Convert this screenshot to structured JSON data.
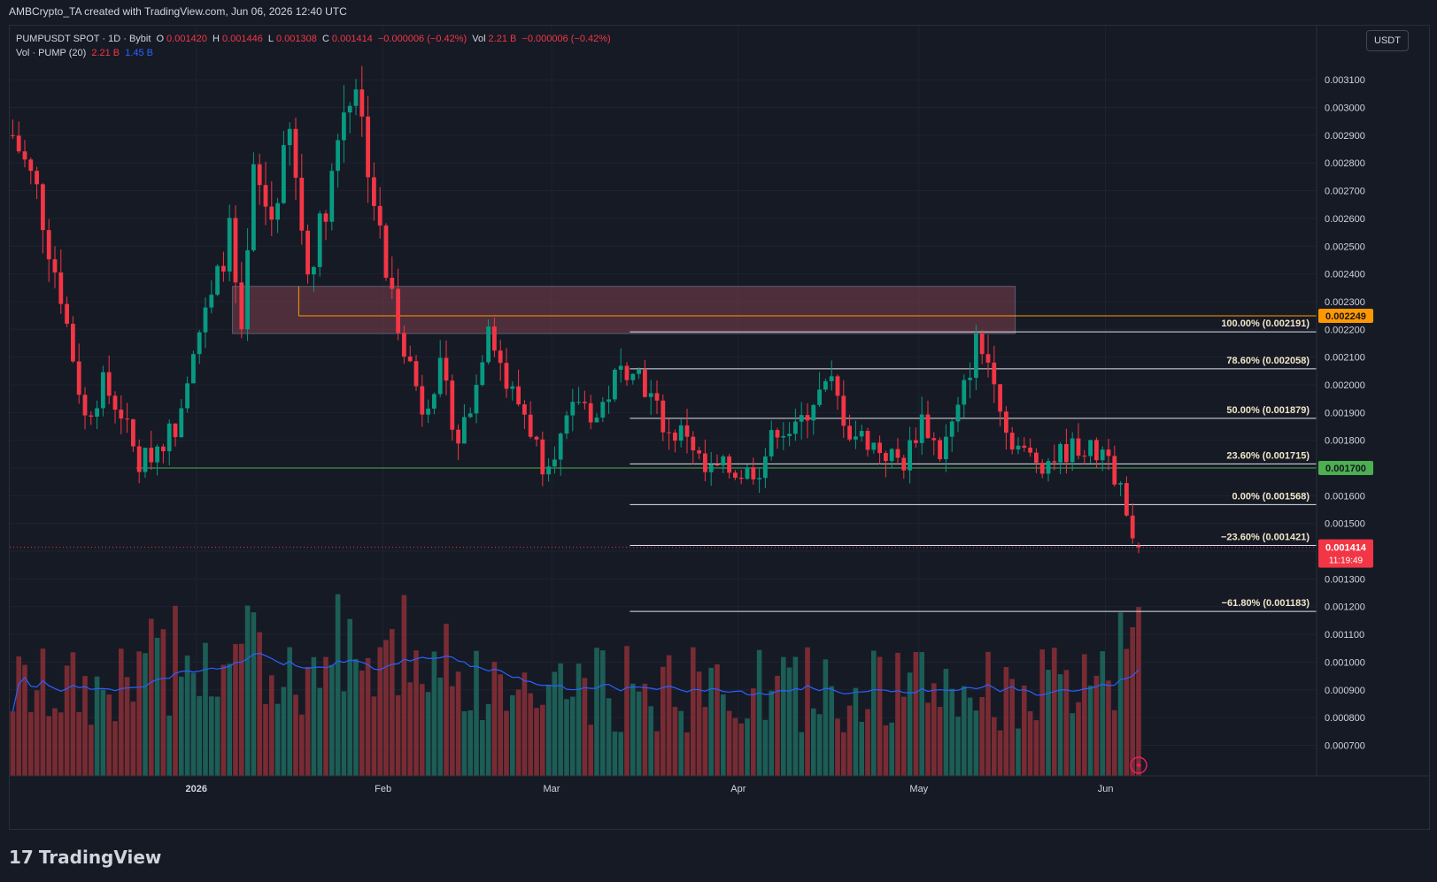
{
  "header": {
    "text": "AMBCrypto_TA created with TradingView.com, Jun 06, 2026 12:40 UTC"
  },
  "legend": {
    "symbol": "PUMPUSDT SPOT · 1D · Bybit",
    "o_label": "O",
    "o": "0.001420",
    "h_label": "H",
    "h": "0.001446",
    "l_label": "L",
    "l": "0.001308",
    "c_label": "C",
    "c": "0.001414",
    "change": "−0.000006 (−0.42%)",
    "vol_label": "Vol",
    "vol": "2.21 B",
    "vol_change": "−0.000006 (−0.42%)",
    "vol_ind": "Vol · PUMP (20)",
    "vol_val1": "2.21 B",
    "vol_val2": "1.45 B"
  },
  "unit_button": "USDT",
  "footer": {
    "logo_mark": "17",
    "logo_text": "TradingView"
  },
  "colors": {
    "up": "#089981",
    "down": "#f23645",
    "fib": "#e0e3eb",
    "support": "#4caf50",
    "resistance": "#ff9800",
    "zone": "#7e3f4f",
    "ma": "#2962ff",
    "bg": "#161a25"
  },
  "chart_data": {
    "type": "candlestick",
    "title": "PUMPUSDT SPOT · 1D · Bybit",
    "ylim": [
      0.00066,
      0.00319
    ],
    "x_labels": [
      {
        "label": "2026",
        "date": "2026-01-01"
      },
      {
        "label": "Feb",
        "date": "2026-02-01"
      },
      {
        "label": "Mar",
        "date": "2026-03-01"
      },
      {
        "label": "Apr",
        "date": "2026-04-01"
      },
      {
        "label": "May",
        "date": "2026-05-01"
      },
      {
        "label": "Jun",
        "date": "2026-06-01"
      }
    ],
    "x_range": [
      "2025-12-01",
      "2026-06-25"
    ],
    "y_ticks": [
      "0.003100",
      "0.003000",
      "0.002900",
      "0.002800",
      "0.002700",
      "0.002600",
      "0.002500",
      "0.002400",
      "0.002300",
      "0.002200",
      "0.002100",
      "0.002000",
      "0.001900",
      "0.001800",
      "0.001700",
      "0.001600",
      "0.001500",
      "0.001400",
      "0.001300",
      "0.001200",
      "0.001100",
      "0.001000",
      "0.000900",
      "0.000800",
      "0.000700"
    ],
    "key_closes": [
      [
        "2025-12-01",
        0.0029
      ],
      [
        "2025-12-05",
        0.0027
      ],
      [
        "2025-12-07",
        0.0025
      ],
      [
        "2025-12-09",
        0.00233
      ],
      [
        "2025-12-11",
        0.0021
      ],
      [
        "2025-12-13",
        0.00188
      ],
      [
        "2025-12-16",
        0.002
      ],
      [
        "2025-12-19",
        0.0019
      ],
      [
        "2025-12-22",
        0.00171
      ],
      [
        "2025-12-25",
        0.00178
      ],
      [
        "2025-12-28",
        0.00185
      ],
      [
        "2025-12-31",
        0.00215
      ],
      [
        "2026-01-03",
        0.0023
      ],
      [
        "2026-01-06",
        0.00255
      ],
      [
        "2026-01-08",
        0.00215
      ],
      [
        "2026-01-10",
        0.00275
      ],
      [
        "2026-01-13",
        0.0026
      ],
      [
        "2026-01-16",
        0.0029
      ],
      [
        "2026-01-19",
        0.0024
      ],
      [
        "2026-01-22",
        0.00265
      ],
      [
        "2026-01-25",
        0.003
      ],
      [
        "2026-01-27",
        0.0031
      ],
      [
        "2026-01-29",
        0.0028
      ],
      [
        "2026-02-01",
        0.0024
      ],
      [
        "2026-02-04",
        0.00215
      ],
      [
        "2026-02-07",
        0.00192
      ],
      [
        "2026-02-10",
        0.00205
      ],
      [
        "2026-02-13",
        0.0018
      ],
      [
        "2026-02-16",
        0.002
      ],
      [
        "2026-02-18",
        0.00225
      ],
      [
        "2026-02-21",
        0.002
      ],
      [
        "2026-02-24",
        0.0019
      ],
      [
        "2026-02-27",
        0.00172
      ],
      [
        "2026-03-02",
        0.0018
      ],
      [
        "2026-03-05",
        0.00195
      ],
      [
        "2026-03-08",
        0.00188
      ],
      [
        "2026-03-11",
        0.00202
      ],
      [
        "2026-03-14",
        0.00209
      ],
      [
        "2026-03-17",
        0.00195
      ],
      [
        "2026-03-20",
        0.00182
      ],
      [
        "2026-03-23",
        0.00183
      ],
      [
        "2026-03-26",
        0.00168
      ],
      [
        "2026-03-29",
        0.0017
      ],
      [
        "2026-04-01",
        0.00168
      ],
      [
        "2026-04-04",
        0.0017
      ],
      [
        "2026-04-07",
        0.00185
      ],
      [
        "2026-04-10",
        0.00183
      ],
      [
        "2026-04-13",
        0.00195
      ],
      [
        "2026-04-16",
        0.002
      ],
      [
        "2026-04-19",
        0.00183
      ],
      [
        "2026-04-22",
        0.0018
      ],
      [
        "2026-04-25",
        0.00175
      ],
      [
        "2026-04-28",
        0.00172
      ],
      [
        "2026-05-01",
        0.00188
      ],
      [
        "2026-05-04",
        0.00175
      ],
      [
        "2026-05-07",
        0.0019
      ],
      [
        "2026-05-10",
        0.00215
      ],
      [
        "2026-05-13",
        0.00205
      ],
      [
        "2026-05-15",
        0.00183
      ],
      [
        "2026-05-18",
        0.00175
      ],
      [
        "2026-05-21",
        0.00172
      ],
      [
        "2026-05-24",
        0.00175
      ],
      [
        "2026-05-27",
        0.00178
      ],
      [
        "2026-05-30",
        0.00175
      ],
      [
        "2026-06-01",
        0.00178
      ],
      [
        "2026-06-02",
        0.00168
      ],
      [
        "2026-06-03",
        0.00163
      ],
      [
        "2026-06-04",
        0.0015
      ],
      [
        "2026-06-05",
        0.00142
      ],
      [
        "2026-06-06",
        0.001414
      ]
    ],
    "fib_levels": [
      {
        "label": "100.00% (0.002191)",
        "value": 0.002191
      },
      {
        "label": "78.60% (0.002058)",
        "value": 0.002058
      },
      {
        "label": "50.00% (0.001879)",
        "value": 0.001879
      },
      {
        "label": "23.60% (0.001715)",
        "value": 0.001715
      },
      {
        "label": "0.00% (0.001568)",
        "value": 0.001568
      },
      {
        "label": "−23.60% (0.001421)",
        "value": 0.001421
      },
      {
        "label": "−61.80% (0.001183)",
        "value": 0.001183
      }
    ],
    "fib_start_date": "2026-03-14",
    "supply_zone": {
      "from_date": "2026-01-07",
      "to_date": "2026-05-17",
      "top": 0.002355,
      "bottom": 0.002185
    },
    "resistance_line": {
      "value": 0.002249,
      "from_date": "2026-01-18",
      "label": "0.002249"
    },
    "support_line": {
      "value": 0.0017,
      "from_date": "2025-12-22",
      "label": "0.001700"
    },
    "last_price": {
      "value": 0.001414,
      "label": "0.001414",
      "countdown": "11:19:49"
    },
    "volume": {
      "max": 3.4,
      "unit": "B",
      "ma_length": 20
    }
  }
}
